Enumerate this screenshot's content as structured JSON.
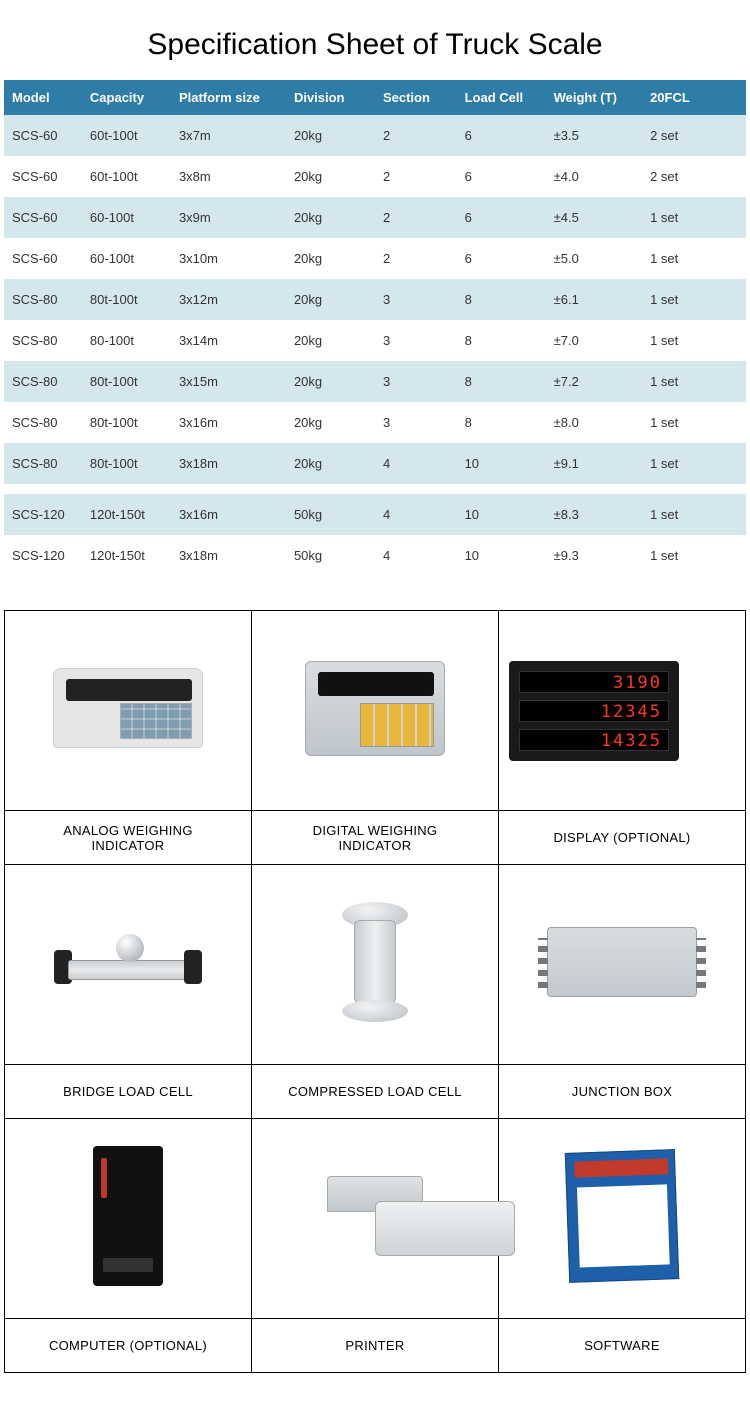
{
  "title": "Specification Sheet of Truck Scale",
  "columns": [
    "Model",
    "Capacity",
    "Platform size",
    "Division",
    "Section",
    "Load Cell",
    "Weight (T)",
    "20FCL"
  ],
  "col_widths_pct": [
    10.5,
    12,
    15.5,
    12,
    11,
    12,
    13,
    14
  ],
  "header_bg": "#2e7ca8",
  "header_fg": "#ffffff",
  "row_bg_a": "#d4e7ed",
  "row_bg_b": "#ffffff",
  "groups": [
    {
      "rows": [
        [
          "SCS-60",
          "60t-100t",
          "3x7m",
          "20kg",
          "2",
          "6",
          "±3.5",
          "2 set"
        ],
        [
          "SCS-60",
          "60t-100t",
          "3x8m",
          "20kg",
          "2",
          "6",
          "±4.0",
          "2 set"
        ],
        [
          "SCS-60",
          "60-100t",
          "3x9m",
          "20kg",
          "2",
          "6",
          "±4.5",
          "1 set"
        ],
        [
          "SCS-60",
          "60-100t",
          "3x10m",
          "20kg",
          "2",
          "6",
          "±5.0",
          "1 set"
        ],
        [
          "SCS-80",
          "80t-100t",
          "3x12m",
          "20kg",
          "3",
          "8",
          "±6.1",
          "1 set"
        ],
        [
          "SCS-80",
          "80-100t",
          "3x14m",
          "20kg",
          "3",
          "8",
          "±7.0",
          "1 set"
        ],
        [
          "SCS-80",
          "80t-100t",
          "3x15m",
          "20kg",
          "3",
          "8",
          "±7.2",
          "1 set"
        ],
        [
          "SCS-80",
          "80t-100t",
          "3x16m",
          "20kg",
          "3",
          "8",
          "±8.0",
          "1 set"
        ],
        [
          "SCS-80",
          "80t-100t",
          "3x18m",
          "20kg",
          "4",
          "10",
          "±9.1",
          "1 set"
        ]
      ]
    },
    {
      "rows": [
        [
          "SCS-120",
          "120t-150t",
          "3x16m",
          "50kg",
          "4",
          "10",
          "±8.3",
          "1 set"
        ],
        [
          "SCS-120",
          "120t-150t",
          "3x18m",
          "50kg",
          "4",
          "10",
          "±9.3",
          "1 set"
        ]
      ]
    }
  ],
  "display_values": [
    "3190",
    "12345",
    "14325"
  ],
  "components": [
    {
      "label": "ANALOG WEIGHING INDICATOR",
      "icon": "indicator1"
    },
    {
      "label": "DIGITAL WEIGHING INDICATOR",
      "icon": "indicator2"
    },
    {
      "label": "DISPLAY (OPTIONAL)",
      "icon": "display"
    },
    {
      "label": "BRIDGE LOAD CELL",
      "icon": "bridge"
    },
    {
      "label": "COMPRESSED LOAD CELL",
      "icon": "compress"
    },
    {
      "label": "JUNCTION BOX",
      "icon": "junction"
    },
    {
      "label": "COMPUTER (OPTIONAL)",
      "icon": "computer"
    },
    {
      "label": "PRINTER",
      "icon": "printer"
    },
    {
      "label": "SOFTWARE",
      "icon": "software"
    }
  ],
  "table_font_size": 13,
  "title_font_size": 30,
  "component_label_font_size": 13
}
